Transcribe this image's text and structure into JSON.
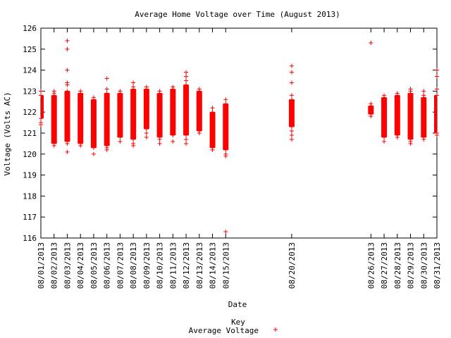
{
  "chart_data": {
    "type": "scatter",
    "title": "Average Home Voltage over Time (August 2013)",
    "xlabel": "Date",
    "ylabel": "Voltage (Volts AC)",
    "ylim": [
      116,
      126
    ],
    "yticks": [
      116,
      117,
      118,
      119,
      120,
      121,
      122,
      123,
      124,
      125,
      126
    ],
    "xlim": [
      "08/01/2013",
      "08/31/2013"
    ],
    "xtick_labels": [
      "08/01/2013",
      "08/02/2013",
      "08/03/2013",
      "08/04/2013",
      "08/05/2013",
      "08/06/2013",
      "08/07/2013",
      "08/08/2013",
      "08/09/2013",
      "08/10/2013",
      "08/11/2013",
      "08/12/2013",
      "08/13/2013",
      "08/14/2013",
      "08/15/2013",
      "08/20/2013",
      "08/26/2013",
      "08/27/2013",
      "08/28/2013",
      "08/29/2013",
      "08/30/2013",
      "08/31/2013"
    ],
    "grid": false,
    "legend": {
      "title": "Key",
      "position": "bottom-center"
    },
    "series": [
      {
        "name": "Average Voltage",
        "color": "#ff0000",
        "marker": "+",
        "daily": [
          {
            "date": "08/01/2013",
            "low": 121.7,
            "high": 122.8,
            "outliers": [
              121.4,
              123.0,
              121.5
            ]
          },
          {
            "date": "08/02/2013",
            "low": 120.5,
            "high": 122.8,
            "outliers": [
              120.4,
              123.0,
              122.9
            ]
          },
          {
            "date": "08/03/2013",
            "low": 120.6,
            "high": 123.0,
            "outliers": [
              120.1,
              125.4,
              125.0,
              124.0,
              123.4,
              123.3,
              120.5
            ]
          },
          {
            "date": "08/04/2013",
            "low": 120.5,
            "high": 122.9,
            "outliers": [
              123.0,
              120.4
            ]
          },
          {
            "date": "08/05/2013",
            "low": 120.3,
            "high": 122.6,
            "outliers": [
              120.0,
              122.7
            ]
          },
          {
            "date": "08/06/2013",
            "low": 120.4,
            "high": 122.9,
            "outliers": [
              120.2,
              123.6,
              123.1,
              120.3
            ]
          },
          {
            "date": "08/07/2013",
            "low": 120.8,
            "high": 122.9,
            "outliers": [
              120.6,
              123.0
            ]
          },
          {
            "date": "08/08/2013",
            "low": 120.7,
            "high": 123.1,
            "outliers": [
              120.4,
              123.4,
              123.2,
              120.5
            ]
          },
          {
            "date": "08/09/2013",
            "low": 121.2,
            "high": 123.1,
            "outliers": [
              120.8,
              123.2,
              121.0
            ]
          },
          {
            "date": "08/10/2013",
            "low": 120.8,
            "high": 122.9,
            "outliers": [
              120.5,
              123.0,
              120.7
            ]
          },
          {
            "date": "08/11/2013",
            "low": 120.9,
            "high": 123.1,
            "outliers": [
              120.6,
              123.2
            ]
          },
          {
            "date": "08/12/2013",
            "low": 120.9,
            "high": 123.3,
            "outliers": [
              120.5,
              123.9,
              123.7,
              123.5,
              120.7
            ]
          },
          {
            "date": "08/13/2013",
            "low": 121.1,
            "high": 123.0,
            "outliers": [
              121.0,
              123.1
            ]
          },
          {
            "date": "08/14/2013",
            "low": 120.3,
            "high": 122.0,
            "outliers": [
              120.2,
              122.2
            ]
          },
          {
            "date": "08/15/2013",
            "low": 120.2,
            "high": 122.4,
            "outliers": [
              116.3,
              119.9,
              122.6,
              120.0
            ]
          },
          {
            "date": "08/20/2013",
            "low": 121.3,
            "high": 122.6,
            "outliers": [
              120.7,
              120.9,
              121.1,
              124.2,
              123.9,
              123.4,
              122.8
            ]
          },
          {
            "date": "08/26/2013",
            "low": 121.9,
            "high": 122.3,
            "outliers": [
              125.3,
              122.4,
              121.8
            ]
          },
          {
            "date": "08/27/2013",
            "low": 120.8,
            "high": 122.7,
            "outliers": [
              120.6,
              122.8
            ]
          },
          {
            "date": "08/28/2013",
            "low": 120.9,
            "high": 122.8,
            "outliers": [
              120.8,
              122.9
            ]
          },
          {
            "date": "08/29/2013",
            "low": 120.7,
            "high": 122.9,
            "outliers": [
              120.5,
              123.1,
              123.0,
              120.6
            ]
          },
          {
            "date": "08/30/2013",
            "low": 120.8,
            "high": 122.7,
            "outliers": [
              120.7,
              123.0,
              122.8
            ]
          },
          {
            "date": "08/31/2013",
            "low": 121.0,
            "high": 122.8,
            "outliers": [
              124.0,
              123.7,
              123.1,
              120.9
            ]
          }
        ]
      }
    ]
  }
}
